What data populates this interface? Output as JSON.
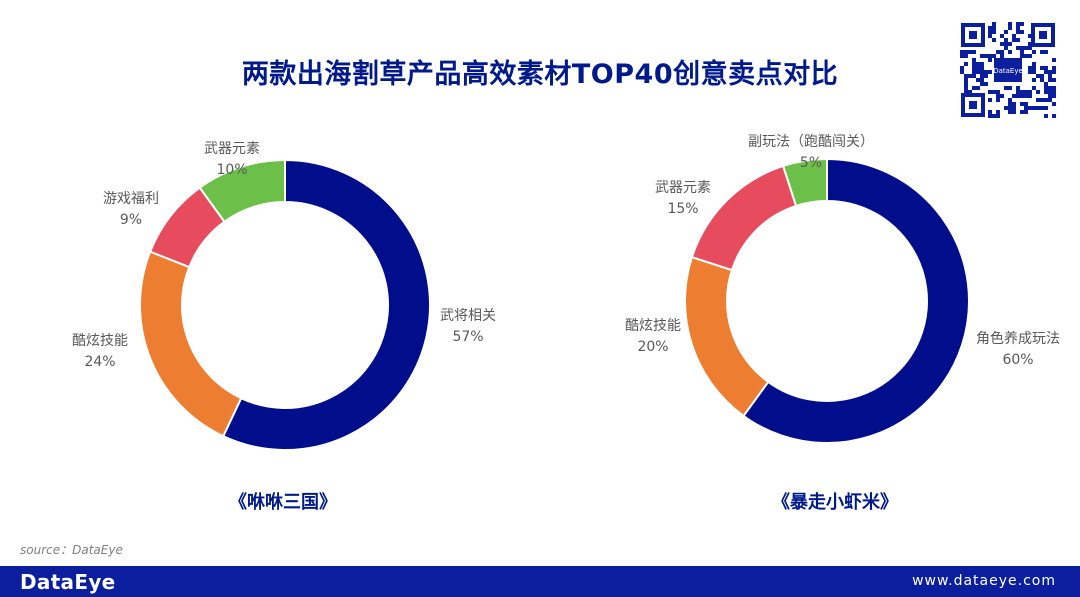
{
  "header": {
    "title": "两款出海割草产品高效素材TOP40创意卖点对比"
  },
  "qr_badge": {
    "label": "DataEye"
  },
  "chart_data": [
    {
      "type": "pie",
      "donut": true,
      "caption": "《咻咻三国》",
      "slices": [
        {
          "label": "武将相关",
          "value": 57,
          "display": "57%",
          "color": "#000e8c"
        },
        {
          "label": "酷炫技能",
          "value": 24,
          "display": "24%",
          "color": "#ed7d31"
        },
        {
          "label": "游戏福利",
          "value": 9,
          "display": "9%",
          "color": "#e74c5e"
        },
        {
          "label": "武器元素",
          "value": 10,
          "display": "10%",
          "color": "#6cc04a"
        }
      ]
    },
    {
      "type": "pie",
      "donut": true,
      "caption": "《暴走小虾米》",
      "slices": [
        {
          "label": "角色养成玩法",
          "value": 60,
          "display": "60%",
          "color": "#000e8c"
        },
        {
          "label": "酷炫技能",
          "value": 20,
          "display": "20%",
          "color": "#ed7d31"
        },
        {
          "label": "武器元素",
          "value": 15,
          "display": "15%",
          "color": "#e74c5e"
        },
        {
          "label": "副玩法（跑酷闯关）",
          "value": 5,
          "display": "5%",
          "color": "#6cc04a"
        }
      ]
    }
  ],
  "source": "source：DataEye",
  "footer": {
    "brand": "DataEye",
    "website": "www.dataeye.com"
  }
}
